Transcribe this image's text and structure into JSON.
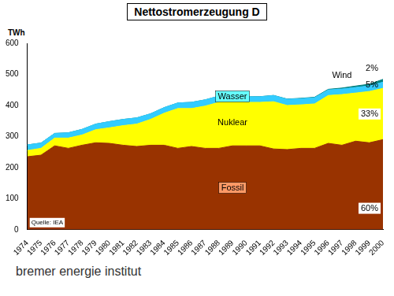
{
  "chart_data": {
    "type": "area",
    "title": "Nettostromerzeugung D",
    "y_label": "TWh",
    "stacked": true,
    "grid": false,
    "categories": [
      "1974",
      "1975",
      "1976",
      "1977",
      "1978",
      "1979",
      "1980",
      "1981",
      "1982",
      "1983",
      "1984",
      "1985",
      "1986",
      "1987",
      "1988",
      "1989",
      "1990",
      "1991",
      "1992",
      "1993",
      "1994",
      "1995",
      "1996",
      "1997",
      "1998",
      "1999",
      "2000"
    ],
    "series": [
      {
        "name": "Fossil",
        "color": "#993300",
        "values": [
          235,
          240,
          270,
          262,
          272,
          280,
          278,
          272,
          268,
          272,
          272,
          262,
          268,
          262,
          262,
          270,
          270,
          270,
          260,
          258,
          262,
          262,
          278,
          272,
          285,
          280,
          290
        ]
      },
      {
        "name": "Nuklear",
        "color": "#ffff00",
        "values": [
          20,
          22,
          25,
          33,
          33,
          42,
          50,
          63,
          72,
          83,
          103,
          128,
          122,
          136,
          148,
          150,
          140,
          140,
          152,
          142,
          140,
          143,
          154,
          163,
          155,
          165,
          165
        ]
      },
      {
        "name": "Wasser",
        "color": "#33ccff",
        "values": [
          18,
          17,
          15,
          17,
          18,
          18,
          20,
          20,
          20,
          18,
          18,
          18,
          20,
          20,
          20,
          18,
          18,
          18,
          20,
          20,
          20,
          20,
          18,
          18,
          18,
          18,
          20
        ]
      },
      {
        "name": "Wind",
        "color": "#008080",
        "values": [
          0,
          0,
          0,
          0,
          0,
          0,
          0,
          0,
          0,
          0,
          0,
          0,
          0,
          0,
          0,
          0,
          0,
          0.2,
          0.3,
          0.6,
          1,
          1.5,
          2,
          3,
          4.5,
          5.5,
          9
        ]
      }
    ],
    "annotations": [
      {
        "series": "Fossil",
        "text": "60%"
      },
      {
        "series": "Nuklear",
        "text": "33%"
      },
      {
        "series": "Wasser",
        "text": "5%"
      },
      {
        "series": "Wind",
        "text": "2%"
      }
    ],
    "source": "Quelle: IEA",
    "footer": "bremer energie institut",
    "ylim": [
      0,
      600
    ],
    "yticks": [
      0,
      100,
      200,
      300,
      400,
      500,
      600
    ]
  }
}
